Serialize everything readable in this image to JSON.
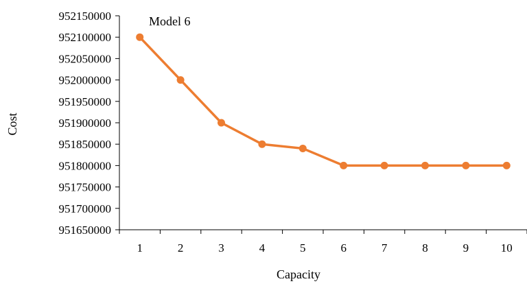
{
  "chart_data": {
    "type": "line",
    "title": "",
    "xlabel": "Capacity",
    "ylabel": "Cost",
    "x": [
      1,
      2,
      3,
      4,
      5,
      6,
      7,
      8,
      9,
      10
    ],
    "series": [
      {
        "values": [
          952100000,
          952000000,
          951900000,
          951850000,
          951840000,
          951800000,
          951800000,
          951800000,
          951800000,
          951800000
        ],
        "color": "#ED7D31"
      }
    ],
    "ylim": [
      951650000,
      952150000
    ],
    "ytick_step": 50000,
    "grid": false,
    "legend": "none",
    "annotations": [
      {
        "text": "Model 6",
        "x": 1,
        "y": 952100000
      }
    ]
  }
}
